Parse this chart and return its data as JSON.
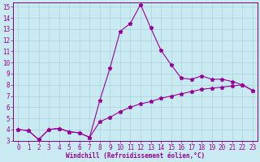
{
  "xlabel": "Windchill (Refroidissement éolien,°C)",
  "background_color": "#c8eaf0",
  "grid_color": "#aad4dc",
  "line_color": "#990099",
  "xlim": [
    -0.5,
    23.5
  ],
  "ylim": [
    3,
    15.4
  ],
  "yticks": [
    3,
    4,
    5,
    6,
    7,
    8,
    9,
    10,
    11,
    12,
    13,
    14,
    15
  ],
  "xticks": [
    0,
    1,
    2,
    3,
    4,
    5,
    6,
    7,
    8,
    9,
    10,
    11,
    12,
    13,
    14,
    15,
    16,
    17,
    18,
    19,
    20,
    21,
    22,
    23
  ],
  "series1_x": [
    0,
    1,
    2,
    3,
    4,
    5,
    6,
    7,
    8,
    9,
    10,
    11,
    12,
    13,
    14,
    15,
    16,
    17,
    18,
    19,
    20,
    21,
    22,
    23
  ],
  "series1_y": [
    4.0,
    3.9,
    3.1,
    4.0,
    4.1,
    3.8,
    3.7,
    3.3,
    6.6,
    9.5,
    12.8,
    13.5,
    15.2,
    13.1,
    11.1,
    9.8,
    8.6,
    8.5,
    8.8,
    8.5,
    8.5,
    8.3,
    8.0,
    7.5
  ],
  "series2_x": [
    0,
    1,
    2,
    3,
    4,
    5,
    6,
    7,
    8,
    9,
    10,
    11,
    12,
    13,
    14,
    15,
    16,
    17,
    18,
    19,
    20,
    21,
    22,
    23
  ],
  "series2_y": [
    4.0,
    3.9,
    3.1,
    4.0,
    4.1,
    3.8,
    3.7,
    3.3,
    4.7,
    5.1,
    5.6,
    6.0,
    6.3,
    6.5,
    6.8,
    7.0,
    7.2,
    7.4,
    7.6,
    7.7,
    7.8,
    7.9,
    8.0,
    7.5
  ],
  "tick_fontsize": 5.5,
  "xlabel_fontsize": 5.5,
  "spine_color": "#7a007a"
}
